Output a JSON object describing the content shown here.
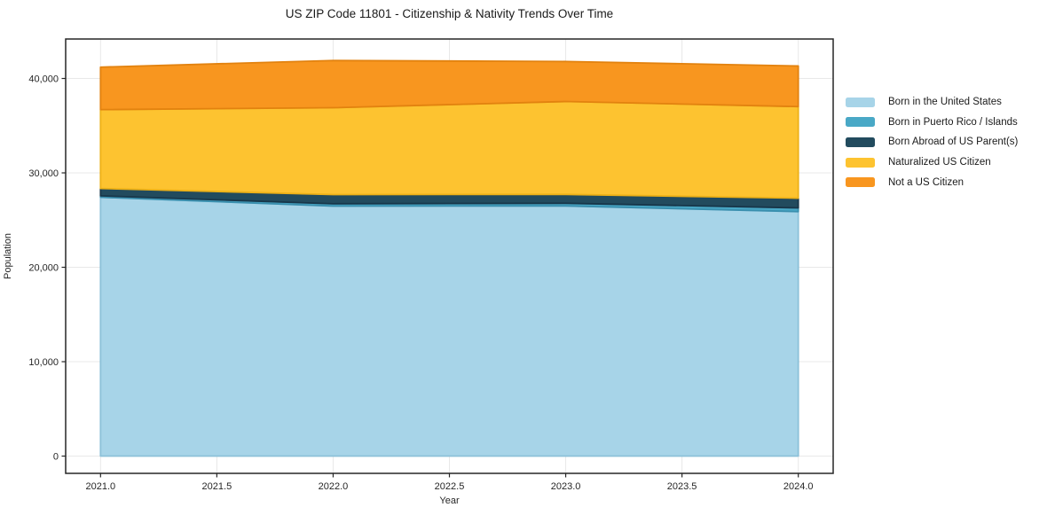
{
  "title": "US ZIP Code 11801 - Citizenship & Nativity Trends Over Time",
  "chart_data": {
    "type": "area",
    "stacked": true,
    "title": "US ZIP Code 11801 - Citizenship & Nativity Trends Over Time",
    "xlabel": "Year",
    "ylabel": "Population",
    "x": [
      2021,
      2022,
      2023,
      2024
    ],
    "series": [
      {
        "name": "Born in the United States",
        "color": "#a7d4e8",
        "edge": "#8cc1d9",
        "values": [
          27420,
          26480,
          26500,
          25900
        ]
      },
      {
        "name": "Born in Puerto Rico / Islands",
        "color": "#49a8c6",
        "edge": "#3a8fae",
        "values": [
          150,
          250,
          280,
          390
        ]
      },
      {
        "name": "Born Abroad of US Parent(s)",
        "color": "#224b5e",
        "edge": "#18374a",
        "values": [
          780,
          970,
          940,
          1030
        ]
      },
      {
        "name": "Naturalized US Citizen",
        "color": "#fdc330",
        "edge": "#edb117",
        "values": [
          8350,
          9200,
          9840,
          9700
        ]
      },
      {
        "name": "Not a US Citizen",
        "color": "#f8961f",
        "edge": "#e2820f",
        "values": [
          4500,
          5000,
          4240,
          4300
        ]
      }
    ],
    "xticks": [
      "2021.0",
      "2021.5",
      "2022.0",
      "2022.5",
      "2023.0",
      "2023.5",
      "2024.0"
    ],
    "yticks": [
      "0",
      "10,000",
      "20,000",
      "30,000",
      "40,000"
    ],
    "xlim": [
      2020.85,
      2024.15
    ],
    "ylim": [
      -1830,
      44180
    ],
    "grid": true,
    "grid_color": "#e8e8e8",
    "spine_color": "#262626",
    "tick_label_color": "#262626",
    "legend_position": "right"
  }
}
